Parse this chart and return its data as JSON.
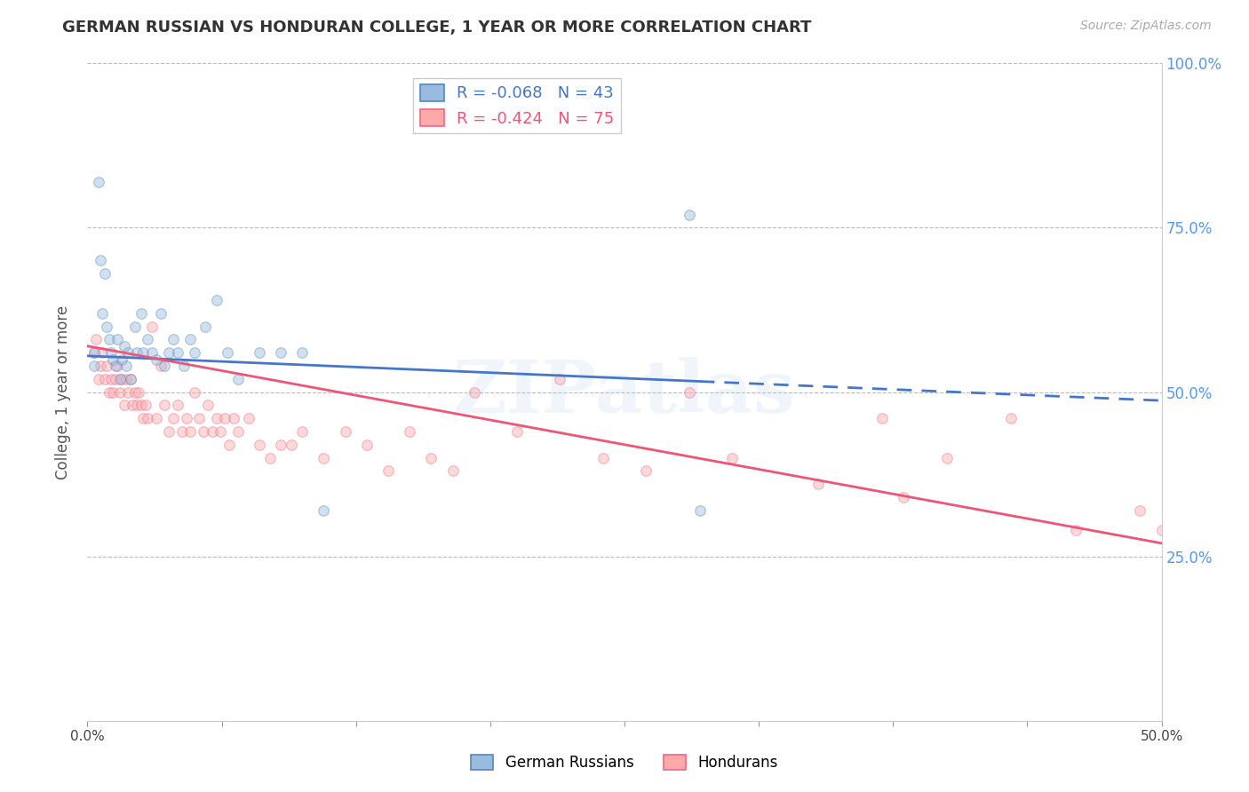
{
  "title": "GERMAN RUSSIAN VS HONDURAN COLLEGE, 1 YEAR OR MORE CORRELATION CHART",
  "source": "Source: ZipAtlas.com",
  "ylabel": "College, 1 year or more",
  "watermark": "ZIPatlas",
  "xlim": [
    0.0,
    0.5
  ],
  "ylim": [
    0.0,
    1.0
  ],
  "xticks": [
    0.0,
    0.0625,
    0.125,
    0.1875,
    0.25,
    0.3125,
    0.375,
    0.4375,
    0.5
  ],
  "xticklabels": [
    "0.0%",
    "",
    "",
    "",
    "",
    "",
    "",
    "",
    "50.0%"
  ],
  "yticks": [
    0.0,
    0.25,
    0.5,
    0.75,
    1.0
  ],
  "yticklabels_right": [
    "",
    "25.0%",
    "50.0%",
    "75.0%",
    "100.0%"
  ],
  "blue_color": "#99BBDD",
  "pink_color": "#FFAAAA",
  "blue_edge_color": "#5588BB",
  "pink_edge_color": "#EE6688",
  "blue_line_color": "#4477CC",
  "pink_line_color": "#EE5577",
  "legend_R_blue": "R = -0.068",
  "legend_N_blue": "N = 43",
  "legend_R_pink": "R = -0.424",
  "legend_N_pink": "N = 75",
  "grid_color": "#BBBBBB",
  "title_color": "#333333",
  "right_axis_color": "#5599EE",
  "blue_scatter_x": [
    0.003,
    0.003,
    0.005,
    0.006,
    0.007,
    0.008,
    0.009,
    0.01,
    0.011,
    0.012,
    0.013,
    0.014,
    0.015,
    0.016,
    0.017,
    0.018,
    0.019,
    0.02,
    0.022,
    0.023,
    0.025,
    0.026,
    0.028,
    0.03,
    0.032,
    0.034,
    0.036,
    0.038,
    0.04,
    0.042,
    0.045,
    0.048,
    0.05,
    0.055,
    0.06,
    0.065,
    0.07,
    0.08,
    0.09,
    0.1,
    0.11,
    0.28,
    0.285
  ],
  "blue_scatter_y": [
    0.54,
    0.56,
    0.82,
    0.7,
    0.62,
    0.68,
    0.6,
    0.58,
    0.56,
    0.55,
    0.54,
    0.58,
    0.52,
    0.55,
    0.57,
    0.54,
    0.56,
    0.52,
    0.6,
    0.56,
    0.62,
    0.56,
    0.58,
    0.56,
    0.55,
    0.62,
    0.54,
    0.56,
    0.58,
    0.56,
    0.54,
    0.58,
    0.56,
    0.6,
    0.64,
    0.56,
    0.52,
    0.56,
    0.56,
    0.56,
    0.32,
    0.77,
    0.32
  ],
  "pink_scatter_x": [
    0.003,
    0.004,
    0.005,
    0.006,
    0.007,
    0.008,
    0.009,
    0.01,
    0.011,
    0.012,
    0.013,
    0.014,
    0.015,
    0.016,
    0.017,
    0.018,
    0.019,
    0.02,
    0.021,
    0.022,
    0.023,
    0.024,
    0.025,
    0.026,
    0.027,
    0.028,
    0.03,
    0.032,
    0.034,
    0.036,
    0.038,
    0.04,
    0.042,
    0.044,
    0.046,
    0.048,
    0.05,
    0.052,
    0.054,
    0.056,
    0.058,
    0.06,
    0.062,
    0.064,
    0.066,
    0.068,
    0.07,
    0.075,
    0.08,
    0.085,
    0.09,
    0.095,
    0.1,
    0.11,
    0.12,
    0.13,
    0.14,
    0.15,
    0.16,
    0.17,
    0.18,
    0.2,
    0.22,
    0.24,
    0.26,
    0.28,
    0.3,
    0.34,
    0.37,
    0.38,
    0.4,
    0.43,
    0.46,
    0.49,
    0.5
  ],
  "pink_scatter_y": [
    0.56,
    0.58,
    0.52,
    0.54,
    0.56,
    0.52,
    0.54,
    0.5,
    0.52,
    0.5,
    0.52,
    0.54,
    0.5,
    0.52,
    0.48,
    0.52,
    0.5,
    0.52,
    0.48,
    0.5,
    0.48,
    0.5,
    0.48,
    0.46,
    0.48,
    0.46,
    0.6,
    0.46,
    0.54,
    0.48,
    0.44,
    0.46,
    0.48,
    0.44,
    0.46,
    0.44,
    0.5,
    0.46,
    0.44,
    0.48,
    0.44,
    0.46,
    0.44,
    0.46,
    0.42,
    0.46,
    0.44,
    0.46,
    0.42,
    0.4,
    0.42,
    0.42,
    0.44,
    0.4,
    0.44,
    0.42,
    0.38,
    0.44,
    0.4,
    0.38,
    0.5,
    0.44,
    0.52,
    0.4,
    0.38,
    0.5,
    0.4,
    0.36,
    0.46,
    0.34,
    0.4,
    0.46,
    0.29,
    0.32,
    0.29
  ],
  "background_color": "#FFFFFF",
  "marker_size": 70,
  "marker_alpha": 0.45,
  "line_width": 2.0,
  "blue_intercept": 0.555,
  "blue_slope": -0.068,
  "pink_intercept": 0.57,
  "pink_slope": -0.6
}
